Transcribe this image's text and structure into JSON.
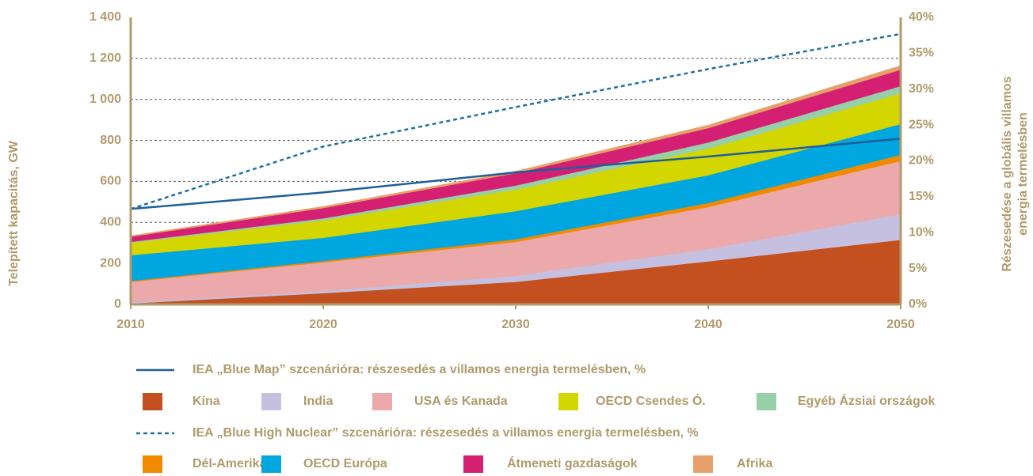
{
  "chart_data": {
    "type": "area",
    "ylabel": "Telepített kapacitás, GW",
    "y2label": [
      "Részesedése a globális villamos",
      "energia termelésben"
    ],
    "x": [
      2010,
      2020,
      2030,
      2040,
      2050
    ],
    "xlim": [
      2010,
      2050
    ],
    "xticks": [
      2010,
      2020,
      2030,
      2040,
      2050
    ],
    "ylim": [
      0,
      1400
    ],
    "yticks": [
      0,
      200,
      400,
      600,
      800,
      {
        "value": 1000,
        "label": "1 000"
      },
      {
        "value": 1200,
        "label": "1 200"
      },
      {
        "value": 1400,
        "label": "1 400"
      }
    ],
    "y2lim": [
      0,
      40
    ],
    "y2ticks": [
      {
        "value": 0,
        "label": "0%"
      },
      {
        "value": 5,
        "label": "5%"
      },
      {
        "value": 10,
        "label": "10%"
      },
      {
        "value": 15,
        "label": "15%"
      },
      {
        "value": 20,
        "label": "20%"
      },
      {
        "value": 25,
        "label": "25%"
      },
      {
        "value": 30,
        "label": "30%"
      },
      {
        "value": 35,
        "label": "35%"
      },
      {
        "value": 40,
        "label": "40%"
      }
    ],
    "grid": true,
    "stacked": true,
    "series": [
      {
        "name": "Kína",
        "color": "#c4501f",
        "values": [
          5,
          55,
          110,
          210,
          315
        ]
      },
      {
        "name": "India",
        "color": "#c5c0e0",
        "values": [
          5,
          10,
          30,
          60,
          125
        ]
      },
      {
        "name": "USA és Kanada",
        "color": "#eba9ab",
        "values": [
          100,
          140,
          165,
          205,
          260
        ]
      },
      {
        "name": "Dél-Amerika",
        "color": "#f28a00",
        "values": [
          5,
          7,
          13,
          20,
          30
        ]
      },
      {
        "name": "OECD Európa",
        "color": "#00a6df",
        "values": [
          125,
          113,
          137,
          135,
          150
        ]
      },
      {
        "name": "OECD Csendes Ó.",
        "color": "#d4d600",
        "values": [
          60,
          85,
          105,
          130,
          150
        ]
      },
      {
        "name": "Egyéb Ázsiai országok",
        "color": "#96cfa8",
        "values": [
          5,
          10,
          20,
          30,
          35
        ]
      },
      {
        "name": "Átmeneti gazdaságok",
        "color": "#d41f73",
        "values": [
          25,
          50,
          60,
          70,
          80
        ]
      },
      {
        "name": "Afrika",
        "color": "#e8a06a",
        "values": [
          5,
          8,
          10,
          15,
          20
        ]
      },
      {
        "name": "IEA „Blue Map” szcenárióra: részesedés a villamos energia termelésben, %",
        "color": "#1f5f9a",
        "axis": "y2",
        "dashed": false,
        "values": [
          13.3,
          15.6,
          18.4,
          20.6,
          23.1
        ]
      },
      {
        "name": "IEA „Blue High Nuclear” szcenárióra: részesedés a villamos energia termelésben, %",
        "color": "#1f6fa8",
        "axis": "y2",
        "dashed": true,
        "values": [
          13.3,
          22.0,
          27.5,
          32.8,
          37.7
        ]
      }
    ]
  }
}
